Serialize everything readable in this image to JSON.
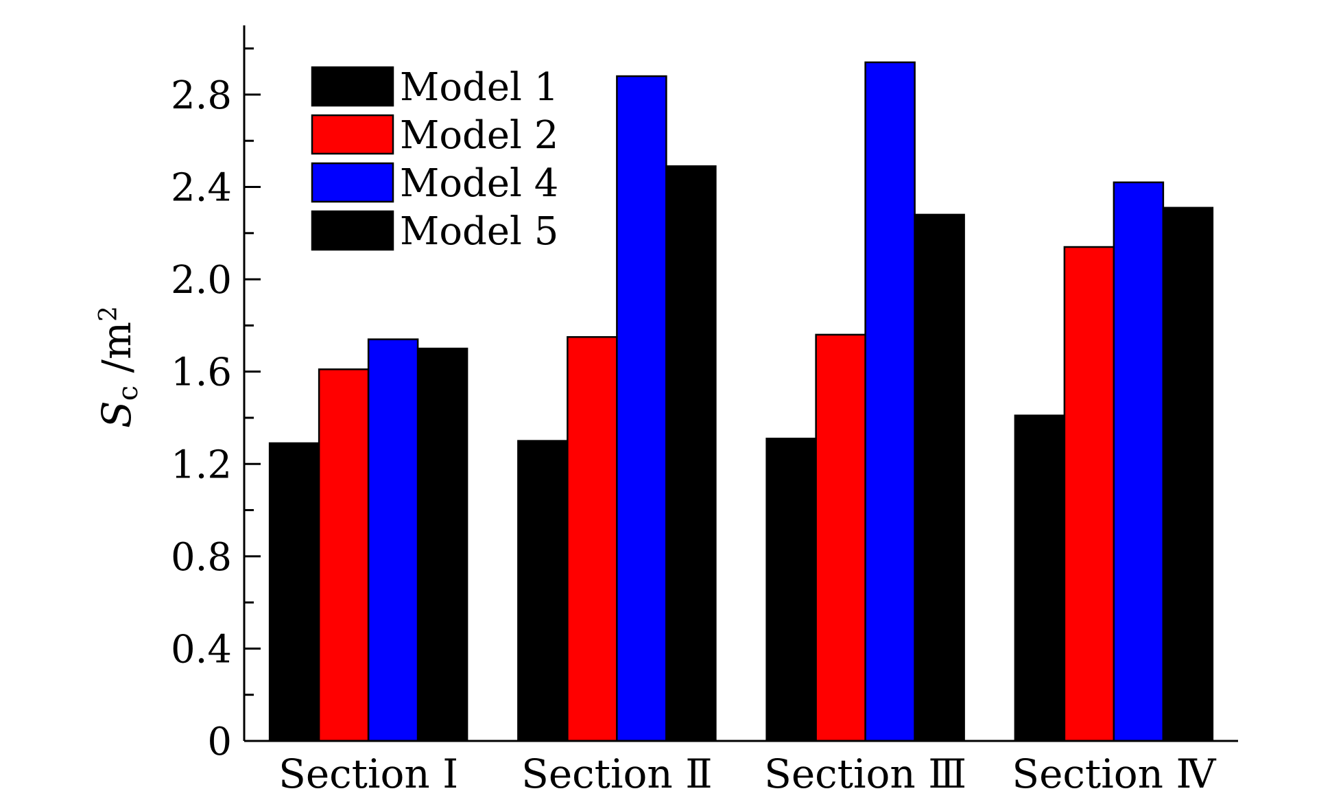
{
  "chart_data": {
    "type": "bar",
    "title": "",
    "xlabel": "",
    "ylabel": {
      "main": "S",
      "subscript": "c",
      "unit_prefix": " /m",
      "unit_superscript": "2"
    },
    "ylim": [
      0,
      3.1
    ],
    "yticks": [
      "0",
      "0.4",
      "0.8",
      "1.2",
      "1.6",
      "2.0",
      "2.4",
      "2.8"
    ],
    "ytick_values": [
      0,
      0.4,
      0.8,
      1.2,
      1.6,
      2.0,
      2.4,
      2.8
    ],
    "categories": [
      "Section Ⅰ",
      "Section Ⅱ",
      "Section Ⅲ",
      "Section Ⅳ"
    ],
    "series": [
      {
        "name": "Model 1",
        "color": "#000000",
        "values": [
          1.29,
          1.3,
          1.31,
          1.41
        ]
      },
      {
        "name": "Model 2",
        "color": "#ff0000",
        "values": [
          1.61,
          1.75,
          1.76,
          2.14
        ]
      },
      {
        "name": "Model 4",
        "color": "#0000ff",
        "values": [
          1.74,
          2.88,
          2.94,
          2.42
        ]
      },
      {
        "name": "Model 5",
        "color": "#000000",
        "values": [
          1.7,
          2.49,
          2.28,
          2.31
        ]
      }
    ],
    "legend": {
      "position": "top-left"
    },
    "grid": false
  }
}
